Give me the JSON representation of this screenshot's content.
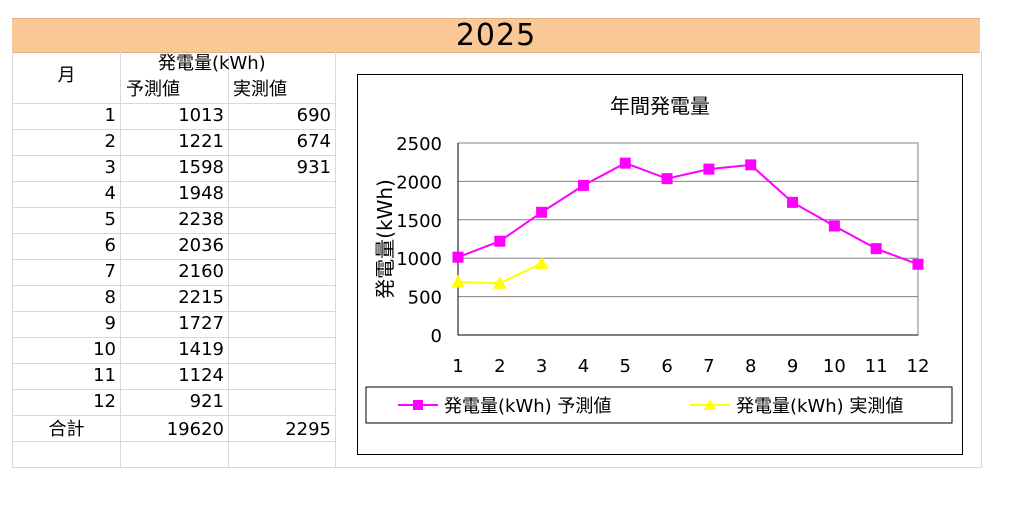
{
  "year": "2025",
  "table": {
    "month_header": "月",
    "group_header": "発電量(kWh)",
    "col_forecast": "予測値",
    "col_actual": "実測値",
    "rows": [
      {
        "month": "1",
        "forecast": "1013",
        "actual": "690"
      },
      {
        "month": "2",
        "forecast": "1221",
        "actual": "674"
      },
      {
        "month": "3",
        "forecast": "1598",
        "actual": "931"
      },
      {
        "month": "4",
        "forecast": "1948",
        "actual": ""
      },
      {
        "month": "5",
        "forecast": "2238",
        "actual": ""
      },
      {
        "month": "6",
        "forecast": "2036",
        "actual": ""
      },
      {
        "month": "7",
        "forecast": "2160",
        "actual": ""
      },
      {
        "month": "8",
        "forecast": "2215",
        "actual": ""
      },
      {
        "month": "9",
        "forecast": "1727",
        "actual": ""
      },
      {
        "month": "10",
        "forecast": "1419",
        "actual": ""
      },
      {
        "month": "11",
        "forecast": "1124",
        "actual": ""
      },
      {
        "month": "12",
        "forecast": "921",
        "actual": ""
      }
    ],
    "total_label": "合計",
    "total_forecast": "19620",
    "total_actual": "2295"
  },
  "chart_data": {
    "type": "line",
    "title": "年間発電量",
    "xlabel": "",
    "ylabel": "発電量(kWh)",
    "categories": [
      "1",
      "2",
      "3",
      "4",
      "5",
      "6",
      "7",
      "8",
      "9",
      "10",
      "11",
      "12"
    ],
    "ylim": [
      0,
      2500
    ],
    "yticks": [
      0,
      500,
      1000,
      1500,
      2000,
      2500
    ],
    "grid": true,
    "legend_position": "bottom",
    "series": [
      {
        "name": "発電量(kWh) 予測値",
        "marker": "square",
        "color": "#ff00ff",
        "values": [
          1013,
          1221,
          1598,
          1948,
          2238,
          2036,
          2160,
          2215,
          1727,
          1419,
          1124,
          921
        ]
      },
      {
        "name": "発電量(kWh) 実測値",
        "marker": "triangle",
        "color": "#ffff00",
        "values": [
          690,
          674,
          931,
          null,
          null,
          null,
          null,
          null,
          null,
          null,
          null,
          null
        ]
      }
    ]
  }
}
